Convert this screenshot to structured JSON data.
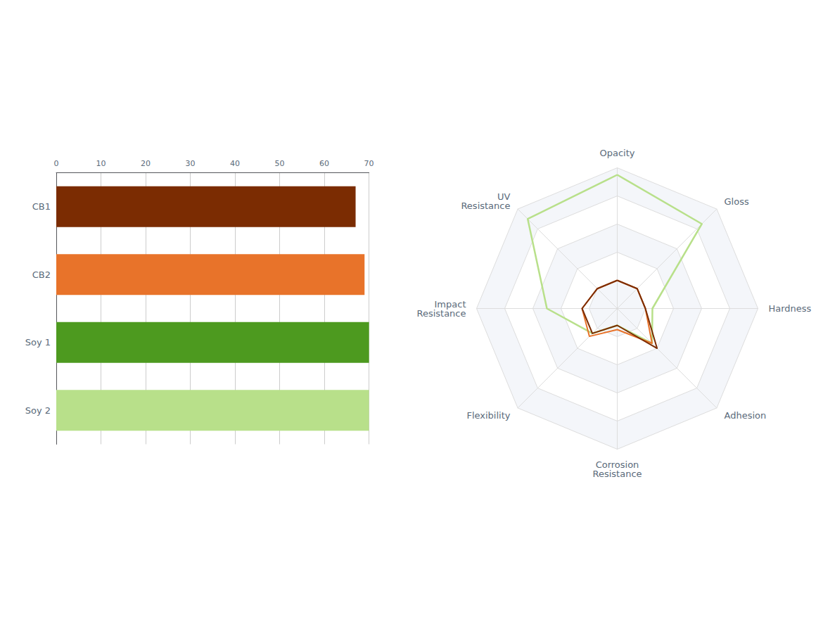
{
  "chart_data": [
    {
      "type": "bar",
      "orientation": "horizontal",
      "categories": [
        "CB1",
        "CB2",
        "Soy 1",
        "Soy 2"
      ],
      "values": [
        67,
        69,
        70,
        70
      ],
      "colors": [
        "#7B2C02",
        "#E8732A",
        "#4D9A1F",
        "#B8E08A"
      ],
      "xlim": [
        0,
        70
      ],
      "xticks": [
        0,
        10,
        20,
        30,
        40,
        50,
        60,
        70
      ],
      "grid": true
    },
    {
      "type": "radar",
      "categories": [
        "Opacity",
        "Gloss",
        "Hardness",
        "Adhesion",
        "Corrosion\nResistance",
        "Flexibility",
        "Impact\nResistance",
        "UV\nResistance"
      ],
      "series": [
        {
          "color": "#7B2C02",
          "values": [
            2.0,
            2.0,
            2.0,
            4.0,
            1.2,
            2.5,
            2.5,
            2.0
          ]
        },
        {
          "color": "#E8732A",
          "values": [
            2.0,
            2.0,
            2.0,
            3.5,
            1.5,
            2.8,
            2.5,
            2.0
          ]
        },
        {
          "color": "#B8E08A",
          "values": [
            9.5,
            8.5,
            2.5,
            3.5,
            1.2,
            2.5,
            5.0,
            9.0
          ]
        }
      ],
      "ylim": [
        0,
        10
      ],
      "yticks": [
        0,
        2,
        4,
        6,
        8,
        10
      ],
      "grid": true,
      "tick_labels": false
    }
  ]
}
